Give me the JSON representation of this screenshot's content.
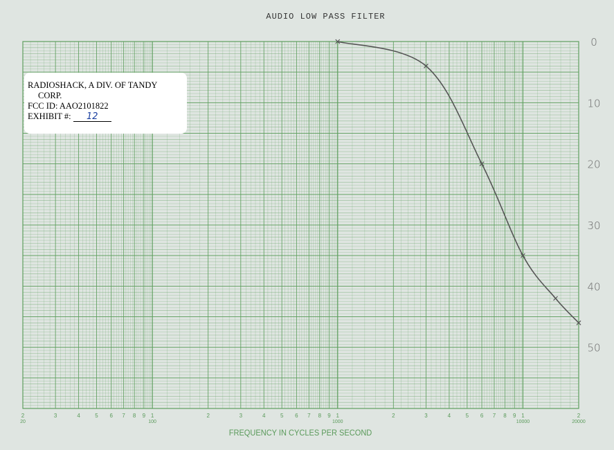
{
  "chart_data": {
    "type": "line",
    "title": "AUDIO LOW PASS FILTER",
    "xlabel": "FREQUENCY IN CYCLES PER SECOND",
    "ylabel": "",
    "x_scale": "log",
    "xlim": [
      20,
      20000
    ],
    "ylim": [
      0,
      60
    ],
    "y_inverted": true,
    "grid": true,
    "x_tick_labels": [
      {
        "digit": "2",
        "value": 20,
        "label": "20"
      },
      {
        "digit": "3",
        "value": 30
      },
      {
        "digit": "4",
        "value": 40
      },
      {
        "digit": "5",
        "value": 50
      },
      {
        "digit": "6",
        "value": 60
      },
      {
        "digit": "7",
        "value": 70
      },
      {
        "digit": "8",
        "value": 80
      },
      {
        "digit": "9",
        "value": 90
      },
      {
        "digit": "1",
        "value": 100,
        "label": "100"
      },
      {
        "digit": "2",
        "value": 200
      },
      {
        "digit": "3",
        "value": 300
      },
      {
        "digit": "4",
        "value": 400
      },
      {
        "digit": "5",
        "value": 500
      },
      {
        "digit": "6",
        "value": 600
      },
      {
        "digit": "7",
        "value": 700
      },
      {
        "digit": "8",
        "value": 800
      },
      {
        "digit": "9",
        "value": 900
      },
      {
        "digit": "1",
        "value": 1000,
        "label": "1000"
      },
      {
        "digit": "2",
        "value": 2000
      },
      {
        "digit": "3",
        "value": 3000
      },
      {
        "digit": "4",
        "value": 4000
      },
      {
        "digit": "5",
        "value": 5000
      },
      {
        "digit": "6",
        "value": 6000
      },
      {
        "digit": "7",
        "value": 7000
      },
      {
        "digit": "8",
        "value": 8000
      },
      {
        "digit": "9",
        "value": 9000
      },
      {
        "digit": "1",
        "value": 10000,
        "label": "10000"
      },
      {
        "digit": "2",
        "value": 20000,
        "label": "20000"
      }
    ],
    "y_tick_labels": [
      "0",
      "10",
      "20",
      "30",
      "40",
      "50"
    ],
    "y_tick_values": [
      0,
      10,
      20,
      30,
      40,
      50
    ],
    "series": [
      {
        "x": [
          1000,
          3000,
          6000,
          10000,
          15000,
          20000
        ],
        "y": [
          0,
          4,
          20,
          35,
          42,
          46
        ],
        "markers": "x",
        "color": "#555555"
      }
    ],
    "colors": {
      "grid": "#5f9f5f",
      "paper": "#dfe5e1"
    }
  },
  "label": {
    "line1": "RADIOSHACK, A DIV. OF TANDY",
    "line2": "CORP.",
    "fcc": "FCC ID: AAO2101822",
    "exhibit_label": "EXHIBIT #:",
    "exhibit_value": "12"
  }
}
